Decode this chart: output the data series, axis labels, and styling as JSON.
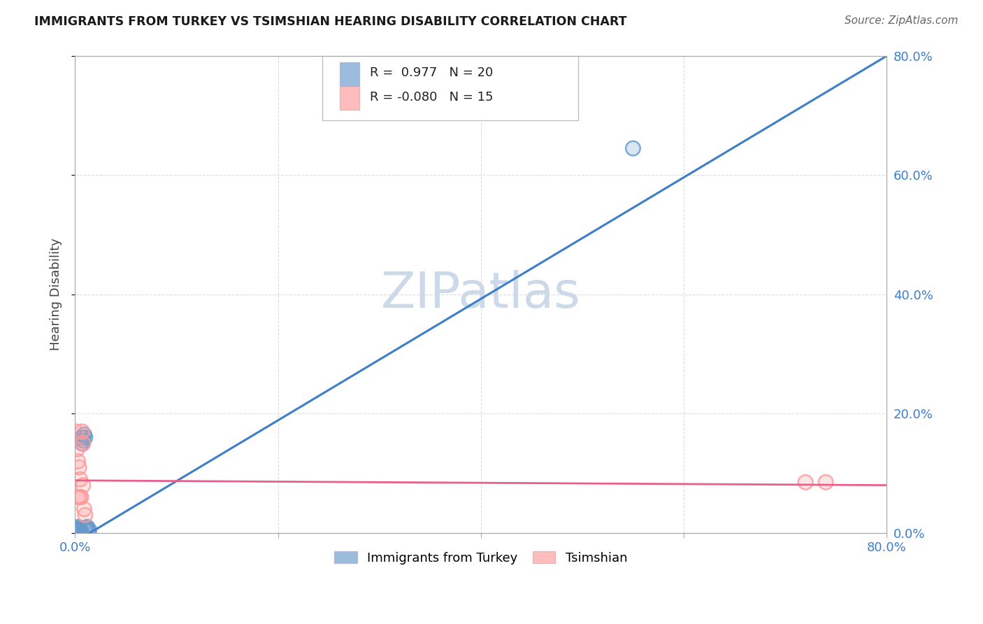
{
  "title": "IMMIGRANTS FROM TURKEY VS TSIMSHIAN HEARING DISABILITY CORRELATION CHART",
  "source": "Source: ZipAtlas.com",
  "ylabel": "Hearing Disability",
  "background_color": "#ffffff",
  "grid_color": "#dddddd",
  "blue_color": "#6699cc",
  "pink_color": "#ff9999",
  "blue_line_color": "#3d7dca",
  "pink_line_color": "#e8608a",
  "watermark_color": "#ccd9e8",
  "legend_R_blue": "0.977",
  "legend_N_blue": "20",
  "legend_R_pink": "-0.080",
  "legend_N_pink": "15",
  "blue_scatter_x": [
    0.001,
    0.002,
    0.002,
    0.003,
    0.003,
    0.003,
    0.004,
    0.005,
    0.006,
    0.007,
    0.007,
    0.008,
    0.009,
    0.01,
    0.01,
    0.011,
    0.012,
    0.013,
    0.014,
    0.55
  ],
  "blue_scatter_y": [
    0.005,
    0.003,
    0.008,
    0.003,
    0.006,
    0.01,
    0.005,
    0.003,
    0.003,
    0.15,
    0.16,
    0.155,
    0.165,
    0.16,
    0.005,
    0.008,
    0.01,
    0.003,
    0.005,
    0.645
  ],
  "pink_scatter_x": [
    0.001,
    0.002,
    0.003,
    0.003,
    0.004,
    0.005,
    0.005,
    0.006,
    0.007,
    0.008,
    0.008,
    0.009,
    0.01,
    0.72,
    0.74
  ],
  "pink_scatter_y": [
    0.17,
    0.14,
    0.12,
    0.06,
    0.11,
    0.09,
    0.06,
    0.06,
    0.17,
    0.15,
    0.08,
    0.04,
    0.03,
    0.085,
    0.085
  ],
  "blue_line_x": [
    0.0,
    0.8
  ],
  "blue_line_y": [
    -0.015,
    0.8
  ],
  "pink_line_x": [
    0.0,
    0.8
  ],
  "pink_line_y": [
    0.088,
    0.08
  ],
  "xlim": [
    0.0,
    0.8
  ],
  "ylim": [
    0.0,
    0.8
  ],
  "xticks": [
    0.0,
    0.2,
    0.4,
    0.6,
    0.8
  ],
  "yticks": [
    0.0,
    0.2,
    0.4,
    0.6,
    0.8
  ],
  "ytick_labels_right": [
    "0.0%",
    "20.0%",
    "40.0%",
    "60.0%",
    "80.0%"
  ],
  "xtick_labels": [
    "0.0%",
    "",
    "",
    "",
    "80.0%"
  ]
}
